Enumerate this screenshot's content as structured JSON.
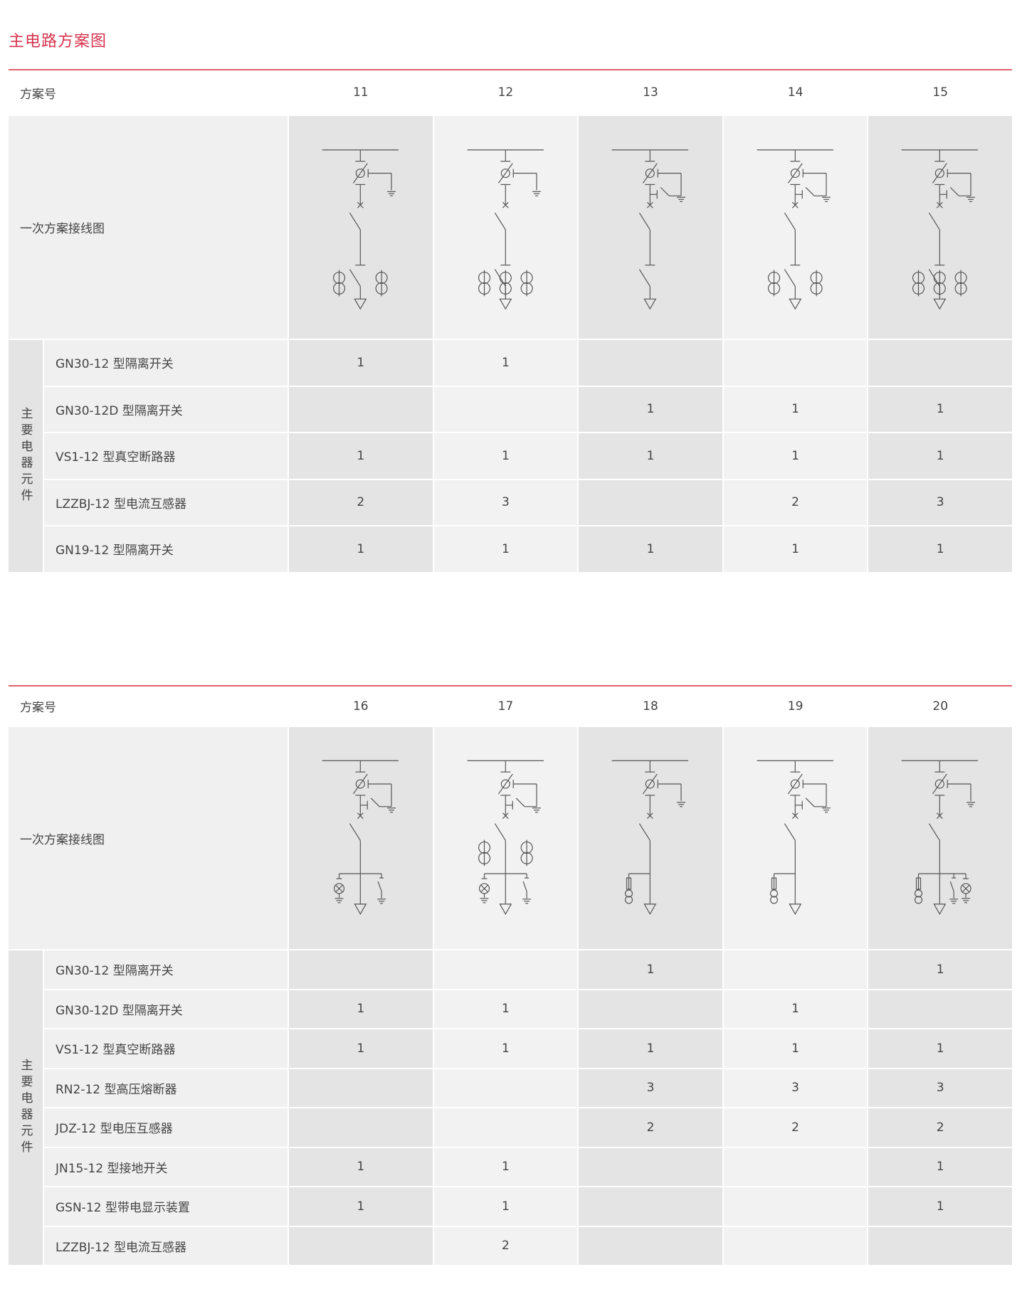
{
  "title": "主电路方案图",
  "colors": {
    "accent": "#d7334e",
    "rule": "#e3606f",
    "dark_cell": "#e4e4e4",
    "light_cell": "#f2f2f2"
  },
  "tables": [
    {
      "scheme_label": "方案号",
      "diagram_label": "一次方案接线图",
      "group_label": "主要电器元件",
      "schemes": [
        "11",
        "12",
        "13",
        "14",
        "15"
      ],
      "diagrams": [
        {
          "ground_interlock": false,
          "cts": 2,
          "lower_isolator": true,
          "branch": []
        },
        {
          "ground_interlock": false,
          "cts": 3,
          "lower_isolator": true,
          "branch": []
        },
        {
          "ground_interlock": true,
          "cts": 0,
          "lower_isolator": true,
          "branch": []
        },
        {
          "ground_interlock": true,
          "cts": 2,
          "lower_isolator": true,
          "branch": []
        },
        {
          "ground_interlock": true,
          "cts": 3,
          "lower_isolator": true,
          "branch": []
        }
      ],
      "rows": [
        {
          "label": "GN30-12 型隔离开关",
          "values": [
            "1",
            "1",
            "",
            "",
            ""
          ]
        },
        {
          "label": "GN30-12D 型隔离开关",
          "values": [
            "",
            "",
            "1",
            "1",
            "1"
          ]
        },
        {
          "label": "VS1-12 型真空断路器",
          "values": [
            "1",
            "1",
            "1",
            "1",
            "1"
          ]
        },
        {
          "label": "LZZBJ-12 型电流互感器",
          "values": [
            "2",
            "3",
            "",
            "2",
            "3"
          ]
        },
        {
          "label": "GN19-12 型隔离开关",
          "values": [
            "1",
            "1",
            "1",
            "1",
            "1"
          ]
        }
      ]
    },
    {
      "scheme_label": "方案号",
      "diagram_label": "一次方案接线图",
      "group_label": "主要电器元件",
      "schemes": [
        "16",
        "17",
        "18",
        "19",
        "20"
      ],
      "diagrams": [
        {
          "ground_interlock": true,
          "cts": 0,
          "lower_isolator": false,
          "branch": [
            "indicator",
            "earth-switch"
          ]
        },
        {
          "ground_interlock": true,
          "cts": 2,
          "lower_isolator": false,
          "branch": [
            "indicator",
            "earth-switch"
          ]
        },
        {
          "ground_interlock": false,
          "cts": 0,
          "lower_isolator": false,
          "branch": [
            "fuse-pt"
          ]
        },
        {
          "ground_interlock": true,
          "cts": 0,
          "lower_isolator": false,
          "branch": [
            "fuse-pt"
          ]
        },
        {
          "ground_interlock": false,
          "cts": 0,
          "lower_isolator": false,
          "branch": [
            "fuse-pt",
            "earth-switch",
            "indicator"
          ]
        }
      ],
      "rows": [
        {
          "label": "GN30-12 型隔离开关",
          "values": [
            "",
            "",
            "1",
            "",
            "1"
          ]
        },
        {
          "label": "GN30-12D 型隔离开关",
          "values": [
            "1",
            "1",
            "",
            "1",
            ""
          ]
        },
        {
          "label": "VS1-12 型真空断路器",
          "values": [
            "1",
            "1",
            "1",
            "1",
            "1"
          ]
        },
        {
          "label": "RN2-12 型高压熔断器",
          "values": [
            "",
            "",
            "3",
            "3",
            "3"
          ]
        },
        {
          "label": "JDZ-12 型电压互感器",
          "values": [
            "",
            "",
            "2",
            "2",
            "2"
          ]
        },
        {
          "label": "JN15-12 型接地开关",
          "values": [
            "1",
            "1",
            "",
            "",
            "1"
          ]
        },
        {
          "label": "GSN-12 型带电显示装置",
          "values": [
            "1",
            "1",
            "",
            "",
            "1"
          ]
        },
        {
          "label": "LZZBJ-12 型电流互感器",
          "values": [
            "",
            "2",
            "",
            "",
            ""
          ]
        }
      ]
    }
  ]
}
